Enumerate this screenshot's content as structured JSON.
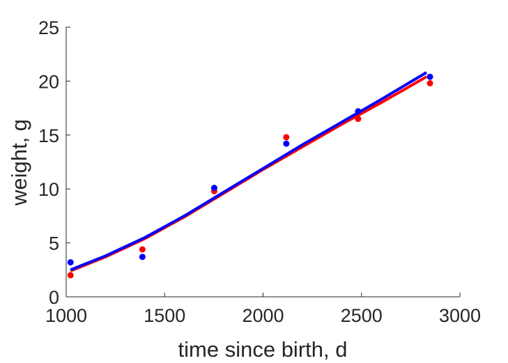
{
  "chart_data": {
    "type": "scatter",
    "title": "",
    "xlabel": "time since birth, d",
    "ylabel": "weight, g",
    "xlim": [
      1000,
      3000
    ],
    "ylim": [
      0,
      25
    ],
    "x_ticks": [
      1000,
      1500,
      2000,
      2500,
      3000
    ],
    "y_ticks": [
      0,
      5,
      10,
      15,
      20,
      25
    ],
    "x_tick_labels": [
      "1000",
      "1500",
      "2000",
      "2500",
      "3000"
    ],
    "y_tick_labels": [
      "0",
      "5",
      "10",
      "15",
      "20",
      "25"
    ],
    "grid": false,
    "legend": "none",
    "series": [
      {
        "kind": "points",
        "color": "#ff0000",
        "points": [
          [
            1022,
            2.0
          ],
          [
            1387,
            4.4
          ],
          [
            1752,
            9.8
          ],
          [
            2118,
            14.8
          ],
          [
            2483,
            16.5
          ],
          [
            2848,
            19.8
          ]
        ]
      },
      {
        "kind": "points",
        "color": "#0000ff",
        "points": [
          [
            1022,
            3.2
          ],
          [
            1387,
            3.7
          ],
          [
            1752,
            10.1
          ],
          [
            2118,
            14.2
          ],
          [
            2483,
            17.2
          ],
          [
            2848,
            20.4
          ]
        ]
      },
      {
        "kind": "line",
        "color": "#ff0000",
        "points": [
          [
            1022,
            2.4
          ],
          [
            1200,
            3.7
          ],
          [
            1400,
            5.4
          ],
          [
            1600,
            7.4
          ],
          [
            1800,
            9.6
          ],
          [
            2000,
            11.8
          ],
          [
            2200,
            13.9
          ],
          [
            2400,
            16.0
          ],
          [
            2600,
            18.0
          ],
          [
            2830,
            20.4
          ]
        ]
      },
      {
        "kind": "line",
        "color": "#0000ff",
        "points": [
          [
            1022,
            2.5
          ],
          [
            1200,
            3.8
          ],
          [
            1400,
            5.5
          ],
          [
            1600,
            7.5
          ],
          [
            1800,
            9.7
          ],
          [
            2000,
            11.9
          ],
          [
            2200,
            14.1
          ],
          [
            2400,
            16.2
          ],
          [
            2600,
            18.3
          ],
          [
            2830,
            20.8
          ]
        ]
      }
    ]
  }
}
